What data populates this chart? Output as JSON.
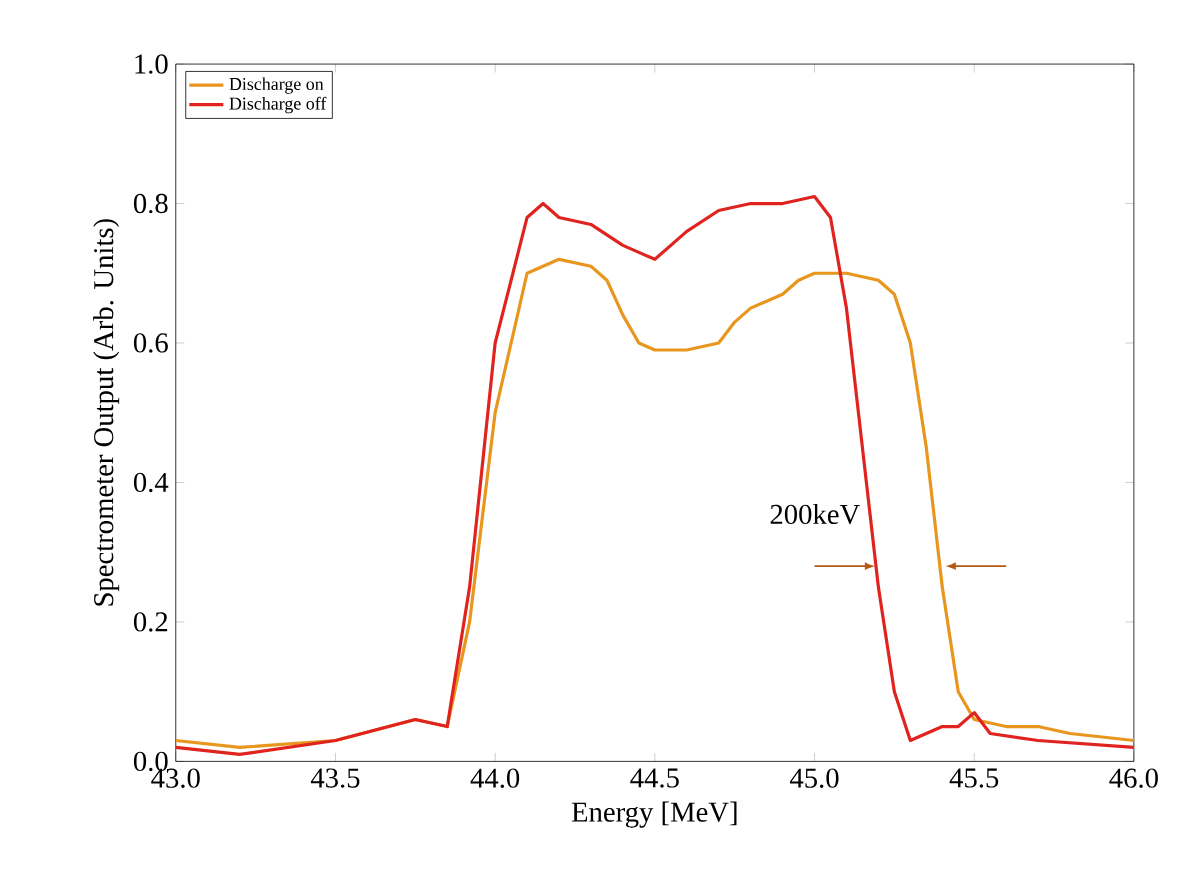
{
  "chart_data": {
    "type": "line",
    "xlabel": "Energy [MeV]",
    "ylabel": "Spectrometer Output (Arb. Units)",
    "xlim": [
      43.0,
      46.0
    ],
    "ylim": [
      0.0,
      1.0
    ],
    "xticks": [
      {
        "value": 43.0,
        "label": "43.0"
      },
      {
        "value": 43.5,
        "label": "43.5"
      },
      {
        "value": 44.0,
        "label": "44.0"
      },
      {
        "value": 44.5,
        "label": "44.5"
      },
      {
        "value": 45.0,
        "label": "45.0"
      },
      {
        "value": 45.5,
        "label": "45.5"
      },
      {
        "value": 46.0,
        "label": "46.0"
      }
    ],
    "yticks": [
      {
        "value": 0.0,
        "label": "0.0"
      },
      0.2,
      0.4,
      0.6,
      0.8,
      {
        "value": 1.0,
        "label": "1.0"
      }
    ],
    "legend": "top left",
    "grid": false,
    "marker": "none",
    "line_style": "solid",
    "annotations": [
      "200keV"
    ],
    "series": [
      {
        "name": "Discharge on",
        "color": "#e8961e",
        "x": [
          43.0,
          43.2,
          43.5,
          43.75,
          43.85,
          43.92,
          44.0,
          44.1,
          44.2,
          44.3,
          44.35,
          44.4,
          44.45,
          44.5,
          44.6,
          44.7,
          44.75,
          44.8,
          44.9,
          44.95,
          45.0,
          45.1,
          45.2,
          45.25,
          45.3,
          45.35,
          45.4,
          45.45,
          45.5,
          45.6,
          45.7,
          45.8,
          46.0
        ],
        "values": [
          0.03,
          0.02,
          0.03,
          0.06,
          0.05,
          0.2,
          0.5,
          0.7,
          0.72,
          0.71,
          0.69,
          0.64,
          0.6,
          0.59,
          0.59,
          0.6,
          0.63,
          0.65,
          0.67,
          0.69,
          0.7,
          0.7,
          0.69,
          0.67,
          0.6,
          0.45,
          0.25,
          0.1,
          0.06,
          0.05,
          0.05,
          0.04,
          0.03
        ]
      },
      {
        "name": "Discharge off",
        "color": "#e0231e",
        "x": [
          43.0,
          43.2,
          43.5,
          43.75,
          43.85,
          43.92,
          44.0,
          44.1,
          44.15,
          44.2,
          44.3,
          44.4,
          44.45,
          44.5,
          44.6,
          44.7,
          44.8,
          44.9,
          45.0,
          45.05,
          45.1,
          45.15,
          45.2,
          45.25,
          45.3,
          45.4,
          45.45,
          45.5,
          45.55,
          45.7,
          46.0
        ],
        "values": [
          0.02,
          0.01,
          0.03,
          0.06,
          0.05,
          0.25,
          0.6,
          0.78,
          0.8,
          0.78,
          0.77,
          0.74,
          0.73,
          0.72,
          0.76,
          0.79,
          0.8,
          0.8,
          0.81,
          0.78,
          0.65,
          0.45,
          0.25,
          0.1,
          0.03,
          0.05,
          0.05,
          0.07,
          0.04,
          0.03,
          0.02
        ]
      }
    ]
  }
}
